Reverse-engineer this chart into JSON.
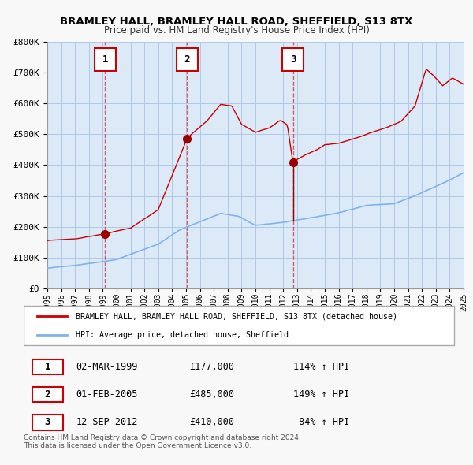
{
  "title": "BRAMLEY HALL, BRAMLEY HALL ROAD, SHEFFIELD, S13 8TX",
  "subtitle": "Price paid vs. HM Land Registry's House Price Index (HPI)",
  "red_label": "BRAMLEY HALL, BRAMLEY HALL ROAD, SHEFFIELD, S13 8TX (detached house)",
  "blue_label": "HPI: Average price, detached house, Sheffield",
  "transactions": [
    {
      "num": 1,
      "date": "02-MAR-1999",
      "year": 1999.17,
      "price": 177000,
      "pct": "114%",
      "dir": "↑"
    },
    {
      "num": 2,
      "date": "01-FEB-2005",
      "year": 2005.08,
      "price": 485000,
      "pct": "149%",
      "dir": "↑"
    },
    {
      "num": 3,
      "date": "12-SEP-2012",
      "year": 2012.7,
      "price": 410000,
      "pct": "84%",
      "dir": "↑"
    }
  ],
  "footer1": "Contains HM Land Registry data © Crown copyright and database right 2024.",
  "footer2": "This data is licensed under the Open Government Licence v3.0.",
  "ylim": [
    0,
    800000
  ],
  "background_color": "#dce9f7",
  "grid_color": "#b0c8e8",
  "red_color": "#cc0000",
  "blue_color": "#7fb3e8",
  "marker_color": "#990000"
}
